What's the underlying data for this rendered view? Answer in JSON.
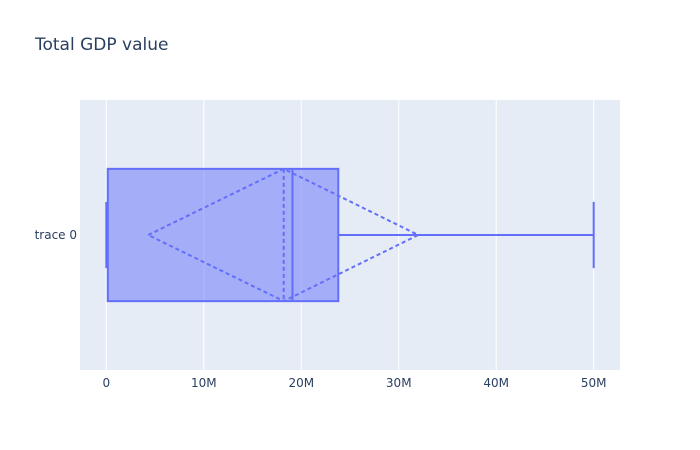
{
  "chart_data": {
    "type": "box",
    "title": "Total GDP value",
    "orientation": "horizontal",
    "xlabel": "",
    "ylabel": "",
    "x_ticks": [
      0,
      10000000,
      20000000,
      30000000,
      40000000,
      50000000
    ],
    "x_tick_labels": [
      "0",
      "10M",
      "20M",
      "30M",
      "40M",
      "50M"
    ],
    "xlim": [
      -2700000,
      52700000
    ],
    "grid": true,
    "legend": "none",
    "series": [
      {
        "name": "trace 0",
        "min": 0,
        "q1": 150000,
        "median": 19100000,
        "q3": 23800000,
        "max": 50000000,
        "mean": 18200000,
        "sd_low": 4300000,
        "sd_high": 32000000,
        "boxmean": "sd"
      }
    ]
  },
  "colors": {
    "plot_bg": "#e5ecf6",
    "grid": "#ffffff",
    "box_line": "#636efa",
    "box_fill": "rgba(99,110,250,0.5)",
    "text": "#2a3f5f",
    "title": "#2a3f5f"
  }
}
